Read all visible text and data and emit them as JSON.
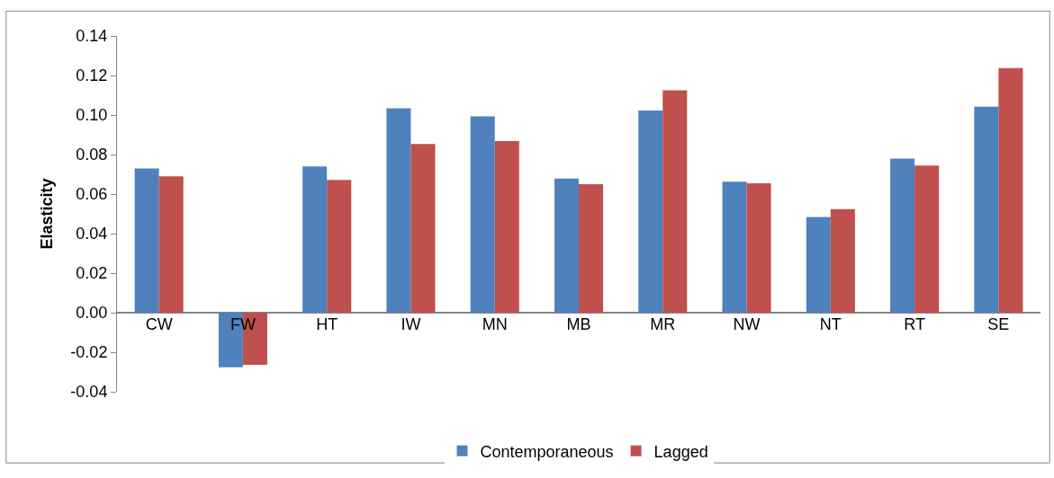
{
  "chart_data": {
    "type": "bar",
    "ylabel": "Elasticity",
    "categories": [
      "CW",
      "FW",
      "HT",
      "IW",
      "MN",
      "MB",
      "MR",
      "NW",
      "NT",
      "RT",
      "SE"
    ],
    "series": [
      {
        "name": "Contemporaneous",
        "color": "#4f81bd",
        "values": [
          0.073,
          -0.0276,
          0.074,
          0.1034,
          0.0993,
          0.0678,
          0.1023,
          0.0663,
          0.0484,
          0.078,
          0.1042
        ]
      },
      {
        "name": "Lagged",
        "color": "#c0504d",
        "values": [
          0.069,
          -0.0264,
          0.0672,
          0.0853,
          0.0868,
          0.065,
          0.1125,
          0.0654,
          0.0524,
          0.0744,
          0.1237
        ]
      }
    ],
    "ylim": [
      -0.04,
      0.14
    ],
    "yticks": [
      {
        "value": -0.04,
        "label": "-0.04"
      },
      {
        "value": -0.02,
        "label": "-0.02"
      },
      {
        "value": 0,
        "label": "0.00"
      },
      {
        "value": 0.02,
        "label": "0.02"
      },
      {
        "value": 0.04,
        "label": "0.04"
      },
      {
        "value": 0.06,
        "label": "0.06"
      },
      {
        "value": 0.08,
        "label": "0.08"
      },
      {
        "value": 0.1,
        "label": "0.10"
      },
      {
        "value": 0.12,
        "label": "0.12"
      },
      {
        "value": 0.14,
        "label": "0.14"
      }
    ],
    "legend": "bottom"
  }
}
